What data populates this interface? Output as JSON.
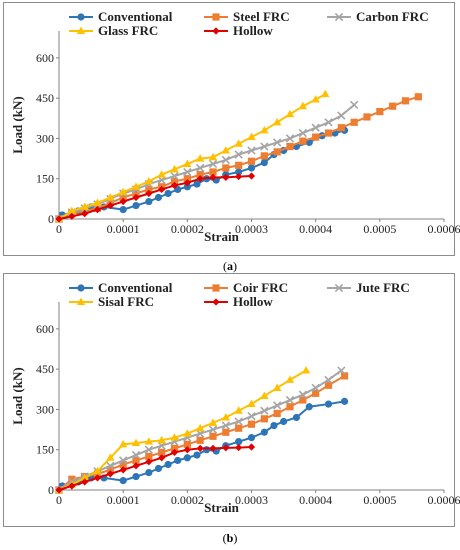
{
  "panel_labels": [
    "a",
    "b"
  ],
  "chart_data": [
    {
      "type": "line",
      "xlabel": "Strain",
      "ylabel": "Load (kN)",
      "xlim": [
        0,
        0.0006
      ],
      "ylim": [
        0,
        700
      ],
      "x_ticks": [
        "0",
        "0.0001",
        "0.0002",
        "0.0003",
        "0.0004",
        "0.0005",
        "0.0006"
      ],
      "y_ticks": [
        "0",
        "150",
        "300",
        "450",
        "600"
      ],
      "legend": "top, inside plot, 3 columns",
      "series": [
        {
          "name": "Conventional",
          "color": "#2e75b6",
          "marker": "circle",
          "x": [
            0,
            5e-06,
            3e-05,
            5e-05,
            7e-05,
            0.0001,
            0.00012,
            0.00014,
            0.000155,
            0.00017,
            0.000185,
            0.0002,
            0.000215,
            0.00023,
            0.000245,
            0.00026,
            0.00028,
            0.0003,
            0.00032,
            0.000335,
            0.00035,
            0.00037,
            0.00039,
            0.00041,
            0.00043,
            0.000445
          ],
          "y": [
            0,
            15,
            30,
            45,
            45,
            35,
            50,
            65,
            80,
            95,
            110,
            120,
            130,
            150,
            145,
            165,
            175,
            190,
            210,
            240,
            255,
            270,
            285,
            310,
            320,
            330
          ]
        },
        {
          "name": "Steel FRC",
          "color": "#ed7d31",
          "marker": "square",
          "x": [
            0,
            2e-05,
            4e-05,
            6e-05,
            8e-05,
            0.0001,
            0.00012,
            0.00014,
            0.00016,
            0.00018,
            0.0002,
            0.00022,
            0.00024,
            0.00026,
            0.00028,
            0.0003,
            0.00032,
            0.00034,
            0.00036,
            0.00038,
            0.0004,
            0.00042,
            0.00044,
            0.00046,
            0.00048,
            0.0005,
            0.00052,
            0.00054,
            0.00056
          ],
          "y": [
            0,
            20,
            30,
            40,
            60,
            80,
            95,
            110,
            120,
            140,
            150,
            165,
            175,
            190,
            200,
            215,
            235,
            250,
            270,
            290,
            305,
            320,
            340,
            360,
            380,
            400,
            420,
            440,
            455
          ]
        },
        {
          "name": "Carbon FRC",
          "color": "#a5a5a5",
          "marker": "x",
          "x": [
            0,
            2e-05,
            4e-05,
            6e-05,
            8e-05,
            0.0001,
            0.00012,
            0.00014,
            0.00016,
            0.00018,
            0.0002,
            0.00022,
            0.00024,
            0.00026,
            0.00028,
            0.0003,
            0.00032,
            0.00034,
            0.00036,
            0.00038,
            0.0004,
            0.00042,
            0.00044,
            0.00046
          ],
          "y": [
            0,
            25,
            40,
            55,
            75,
            95,
            110,
            130,
            145,
            160,
            175,
            190,
            205,
            220,
            240,
            255,
            270,
            285,
            300,
            320,
            340,
            360,
            385,
            425
          ]
        },
        {
          "name": "Glass FRC",
          "color": "#ffc000",
          "marker": "triangle",
          "x": [
            0,
            2e-05,
            4e-05,
            6e-05,
            8e-05,
            0.0001,
            0.00012,
            0.00014,
            0.00016,
            0.00018,
            0.0002,
            0.00022,
            0.00024,
            0.00026,
            0.00028,
            0.0003,
            0.00032,
            0.00034,
            0.00036,
            0.00038,
            0.0004,
            0.000415
          ],
          "y": [
            0,
            30,
            45,
            60,
            80,
            100,
            120,
            140,
            165,
            185,
            205,
            225,
            230,
            255,
            280,
            305,
            330,
            360,
            390,
            420,
            445,
            465
          ]
        },
        {
          "name": "Hollow",
          "color": "#e00000",
          "marker": "diamond",
          "x": [
            0,
            2e-05,
            4e-05,
            6e-05,
            8e-05,
            0.0001,
            0.00012,
            0.00014,
            0.00016,
            0.00018,
            0.0002,
            0.00022,
            0.00024,
            0.00026,
            0.00028,
            0.0003
          ],
          "y": [
            0,
            10,
            20,
            35,
            50,
            65,
            80,
            95,
            110,
            125,
            135,
            150,
            155,
            155,
            158,
            160
          ]
        }
      ]
    },
    {
      "type": "line",
      "xlabel": "Strain",
      "ylabel": "Load (kN)",
      "xlim": [
        0,
        0.0006
      ],
      "ylim": [
        0,
        700
      ],
      "x_ticks": [
        "0",
        "0.0001",
        "0.0002",
        "0.0003",
        "0.0004",
        "0.0005",
        "0.0006"
      ],
      "y_ticks": [
        "0",
        "150",
        "300",
        "450",
        "600"
      ],
      "legend": "top, inside plot, 3 columns",
      "series": [
        {
          "name": "Conventional",
          "color": "#2e75b6",
          "marker": "circle",
          "x": [
            0,
            5e-06,
            3e-05,
            5e-05,
            7e-05,
            0.0001,
            0.00012,
            0.00014,
            0.000155,
            0.00017,
            0.000185,
            0.0002,
            0.000215,
            0.00023,
            0.000245,
            0.00026,
            0.00028,
            0.0003,
            0.00032,
            0.000335,
            0.00035,
            0.00037,
            0.00039,
            0.00042,
            0.000445
          ],
          "y": [
            0,
            15,
            30,
            45,
            45,
            35,
            50,
            65,
            80,
            95,
            110,
            120,
            130,
            150,
            145,
            165,
            180,
            195,
            215,
            240,
            255,
            270,
            310,
            320,
            330
          ]
        },
        {
          "name": "Coir FRC",
          "color": "#ed7d31",
          "marker": "square",
          "x": [
            0,
            2e-05,
            4e-05,
            6e-05,
            8e-05,
            0.0001,
            0.00012,
            0.00014,
            0.00016,
            0.00018,
            0.0002,
            0.00022,
            0.00024,
            0.00026,
            0.00028,
            0.0003,
            0.00032,
            0.00034,
            0.00036,
            0.00038,
            0.0004,
            0.00042,
            0.000445
          ],
          "y": [
            0,
            40,
            50,
            60,
            75,
            95,
            110,
            125,
            140,
            155,
            170,
            185,
            200,
            215,
            230,
            245,
            265,
            285,
            310,
            335,
            360,
            390,
            425
          ]
        },
        {
          "name": "Jute FRC",
          "color": "#a5a5a5",
          "marker": "x",
          "x": [
            0,
            2e-05,
            4e-05,
            6e-05,
            8e-05,
            0.0001,
            0.00012,
            0.00014,
            0.00016,
            0.00018,
            0.0002,
            0.00022,
            0.00024,
            0.00026,
            0.00028,
            0.0003,
            0.00032,
            0.00034,
            0.00036,
            0.00038,
            0.0004,
            0.00042,
            0.00044
          ],
          "y": [
            0,
            30,
            50,
            70,
            90,
            110,
            130,
            150,
            165,
            180,
            195,
            210,
            225,
            240,
            255,
            275,
            295,
            315,
            335,
            355,
            380,
            410,
            445
          ]
        },
        {
          "name": "Sisal FRC",
          "color": "#ffc000",
          "marker": "triangle",
          "x": [
            0,
            2e-05,
            4e-05,
            6e-05,
            8e-05,
            0.0001,
            0.00012,
            0.00014,
            0.00016,
            0.00018,
            0.0002,
            0.00022,
            0.00024,
            0.00026,
            0.00028,
            0.0003,
            0.00032,
            0.00034,
            0.00036,
            0.000385
          ],
          "y": [
            0,
            20,
            45,
            70,
            120,
            170,
            175,
            180,
            185,
            195,
            210,
            230,
            250,
            270,
            295,
            320,
            350,
            380,
            410,
            445
          ]
        },
        {
          "name": "Hollow",
          "color": "#e00000",
          "marker": "diamond",
          "x": [
            0,
            2e-05,
            4e-05,
            6e-05,
            8e-05,
            0.0001,
            0.00012,
            0.00014,
            0.00016,
            0.00018,
            0.0002,
            0.00022,
            0.00024,
            0.00026,
            0.00028,
            0.0003
          ],
          "y": [
            0,
            15,
            30,
            45,
            60,
            75,
            90,
            105,
            120,
            140,
            150,
            155,
            155,
            157,
            158,
            160
          ]
        }
      ]
    }
  ]
}
